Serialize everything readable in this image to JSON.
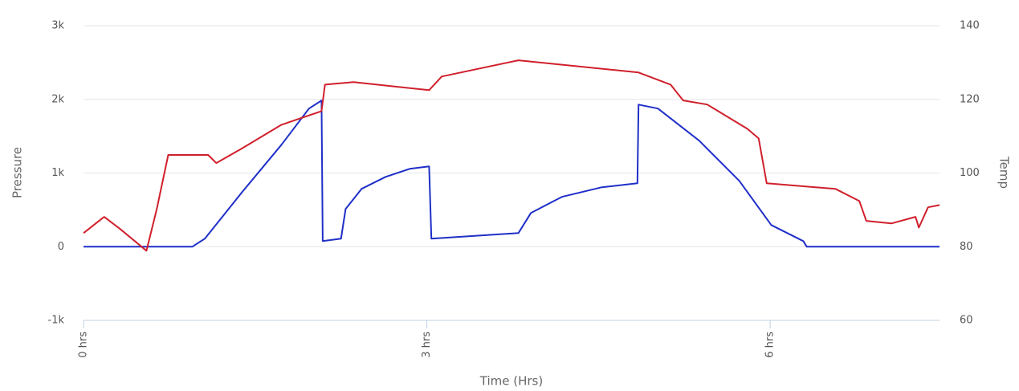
{
  "chart_data": {
    "type": "line",
    "x_label": "Time (Hrs)",
    "y_label": "Pressure",
    "y2_label": "Temp",
    "xlim": [
      0,
      7.48
    ],
    "xticks": [
      {
        "value": 0,
        "label": "0 hrs"
      },
      {
        "value": 3,
        "label": "3 hrs"
      },
      {
        "value": 6,
        "label": "6 hrs"
      }
    ],
    "ylim": [
      -1000,
      3000
    ],
    "yticks": [
      {
        "value": -1000,
        "label": "-1k"
      },
      0,
      {
        "value": 1000,
        "label": "1k"
      },
      {
        "value": 2000,
        "label": "2k"
      },
      {
        "value": 3000,
        "label": "3k"
      }
    ],
    "y2lim": [
      60,
      140
    ],
    "y2ticks": [
      60,
      80,
      100,
      120,
      140
    ],
    "grid": true,
    "series": [
      {
        "color": "#1f2fc8",
        "x": [
          0,
          0.95,
          1.06,
          1.38,
          1.73,
          1.97,
          2.08,
          2.09,
          2.25,
          2.29,
          2.43,
          2.64,
          2.85,
          3.02,
          3.04,
          3.8,
          3.91,
          4.18,
          4.53,
          4.84,
          4.85,
          5.02,
          5.38,
          5.73,
          6.01,
          6.29,
          6.32,
          7.48
        ],
        "values": [
          0,
          0,
          109,
          730,
          1384,
          1875,
          1984,
          76,
          109,
          512,
          785,
          948,
          1057,
          1090,
          109,
          185,
          458,
          676,
          807,
          861,
          1929,
          1875,
          1439,
          894,
          294,
          76,
          0,
          0
        ]
      },
      {
        "color": "#d0202c",
        "axis": "y2",
        "x": [
          0,
          0.18,
          0.32,
          0.55,
          0.64,
          0.74,
          1.09,
          1.16,
          1.38,
          1.73,
          2.08,
          2.11,
          2.36,
          3.02,
          3.13,
          3.8,
          4.85,
          5.13,
          5.24,
          5.45,
          5.8,
          5.9,
          5.97,
          6.57,
          6.78,
          6.84,
          7.06,
          7.27,
          7.3,
          7.38,
          7.48
        ],
        "values": [
          83.7,
          88.1,
          84.8,
          78.9,
          90.2,
          104.9,
          104.9,
          102.7,
          106.6,
          113.1,
          116.8,
          124.0,
          124.7,
          122.5,
          126.2,
          130.6,
          127.3,
          124.0,
          119.7,
          118.6,
          112.0,
          109.4,
          97.2,
          95.7,
          92.4,
          87.0,
          86.3,
          88.1,
          85.2,
          90.7,
          91.3
        ]
      }
    ]
  }
}
